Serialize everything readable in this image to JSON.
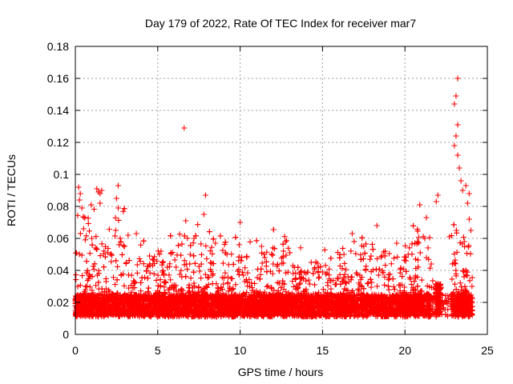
{
  "chart_data": {
    "type": "scatter",
    "title": "Day 179 of 2022, Rate Of TEC Index for receiver mar7",
    "xlabel": "GPS time / hours",
    "ylabel": "ROTI / TECUs",
    "xlim": [
      0,
      25
    ],
    "ylim": [
      0,
      0.18
    ],
    "x_ticks": [
      "0",
      "5",
      "10",
      "15",
      "20",
      "25"
    ],
    "y_ticks": [
      "0",
      "0.02",
      "0.04",
      "0.06",
      "0.08",
      "0.1",
      "0.12",
      "0.14",
      "0.16",
      "0.18"
    ],
    "grid": true,
    "marker": "+",
    "color": "#ff0000",
    "series": [
      {
        "points": [
          [
            0.2,
            0.092
          ],
          [
            0.3,
            0.088
          ],
          [
            0.25,
            0.084
          ],
          [
            0.4,
            0.079
          ],
          [
            1.3,
            0.091
          ],
          [
            1.4,
            0.089
          ],
          [
            1.5,
            0.088
          ],
          [
            1.6,
            0.09
          ],
          [
            1.5,
            0.082
          ],
          [
            2.6,
            0.093
          ],
          [
            2.5,
            0.085
          ],
          [
            2.6,
            0.079
          ],
          [
            6.6,
            0.129
          ],
          [
            7.9,
            0.087
          ],
          [
            7.8,
            0.075
          ],
          [
            6.7,
            0.071
          ],
          [
            10.0,
            0.07
          ],
          [
            18.3,
            0.068
          ],
          [
            20.9,
            0.081
          ],
          [
            21.3,
            0.073
          ],
          [
            22.0,
            0.087
          ],
          [
            21.9,
            0.083
          ],
          [
            23.2,
            0.16
          ],
          [
            23.1,
            0.149
          ],
          [
            23.0,
            0.144
          ],
          [
            23.2,
            0.131
          ],
          [
            23.1,
            0.124
          ],
          [
            23.0,
            0.118
          ],
          [
            23.2,
            0.112
          ],
          [
            23.3,
            0.104
          ],
          [
            23.4,
            0.096
          ],
          [
            23.5,
            0.09
          ],
          [
            23.7,
            0.093
          ],
          [
            23.9,
            0.088
          ],
          [
            23.8,
            0.082
          ],
          [
            23.9,
            0.072
          ],
          [
            24.0,
            0.065
          ],
          [
            0.5,
            0.066
          ],
          [
            1.0,
            0.06
          ],
          [
            3.2,
            0.062
          ],
          [
            3.7,
            0.063
          ],
          [
            4.5,
            0.049
          ],
          [
            5.2,
            0.052
          ],
          [
            5.8,
            0.051
          ],
          [
            7.2,
            0.06
          ],
          [
            8.5,
            0.057
          ],
          [
            9.2,
            0.05
          ],
          [
            10.4,
            0.048
          ],
          [
            11.3,
            0.055
          ],
          [
            12.0,
            0.044
          ],
          [
            13.2,
            0.043
          ],
          [
            14.0,
            0.038
          ],
          [
            15.0,
            0.039
          ],
          [
            16.3,
            0.05
          ],
          [
            16.8,
            0.063
          ],
          [
            17.5,
            0.055
          ],
          [
            18.8,
            0.052
          ],
          [
            19.5,
            0.057
          ],
          [
            20.2,
            0.05
          ],
          [
            20.6,
            0.057
          ],
          [
            21.2,
            0.06
          ],
          [
            21.6,
            0.044
          ],
          [
            22.7,
            0.061
          ],
          [
            23.6,
            0.058
          ]
        ]
      }
    ]
  }
}
